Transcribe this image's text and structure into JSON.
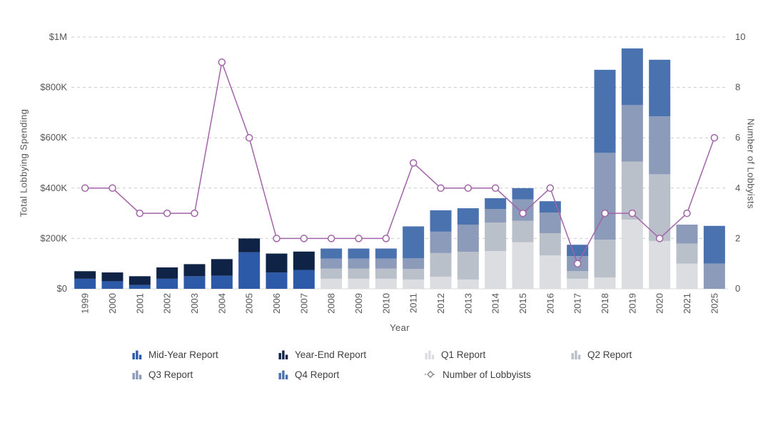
{
  "chart_data": {
    "type": "stacked-bar+line",
    "title": "",
    "xlabel": "Year",
    "ylabel_left": "Total Lobbying Spending",
    "ylabel_right": "Number of Lobbyists",
    "values_unit": "USD thousands",
    "grid": {
      "color": "#cccccc",
      "dashed": true,
      "baseline_color": "#d9d9d9"
    },
    "axis_text_color": "#555555",
    "legend_position": "bottom",
    "categories": [
      "1999",
      "2000",
      "2001",
      "2002",
      "2003",
      "2004",
      "2005",
      "2006",
      "2007",
      "2008",
      "2009",
      "2010",
      "2011",
      "2012",
      "2013",
      "2014",
      "2015",
      "2016",
      "2017",
      "2018",
      "2019",
      "2020",
      "2021",
      "2025"
    ],
    "y_axis_left": {
      "ticks": [
        "$0",
        "$200K",
        "$400K",
        "$600K",
        "$800K",
        "$1M"
      ],
      "tick_values": [
        0,
        200,
        400,
        600,
        800,
        1000
      ],
      "max": 1000
    },
    "y_axis_right": {
      "ticks": [
        "0",
        "2",
        "4",
        "6",
        "8",
        "10"
      ],
      "tick_values": [
        0,
        2,
        4,
        6,
        8,
        10
      ],
      "max": 10
    },
    "bar_series": [
      {
        "name": "Mid-Year Report",
        "color": "#2d5aa8",
        "values": [
          40,
          30,
          15,
          40,
          50,
          52,
          145,
          65,
          75,
          0,
          0,
          0,
          0,
          0,
          0,
          0,
          0,
          0,
          0,
          0,
          0,
          0,
          0,
          0
        ]
      },
      {
        "name": "Year-End Report",
        "color": "#0f2347",
        "values": [
          30,
          35,
          35,
          45,
          48,
          66,
          55,
          75,
          73,
          0,
          0,
          0,
          0,
          0,
          0,
          0,
          0,
          0,
          0,
          0,
          0,
          0,
          0,
          0
        ]
      },
      {
        "name": "Q1 Report",
        "color": "#dcdde1",
        "values": [
          0,
          0,
          0,
          0,
          0,
          0,
          0,
          0,
          0,
          40,
          40,
          40,
          37,
          48,
          37,
          150,
          185,
          133,
          40,
          45,
          275,
          190,
          100,
          0
        ]
      },
      {
        "name": "Q2 Report",
        "color": "#b9c0ca",
        "values": [
          0,
          0,
          0,
          0,
          0,
          0,
          0,
          0,
          0,
          40,
          40,
          40,
          42,
          94,
          110,
          113,
          85,
          88,
          30,
          150,
          230,
          265,
          80,
          0
        ]
      },
      {
        "name": "Q3 Report",
        "color": "#8c9bb9",
        "values": [
          0,
          0,
          0,
          0,
          0,
          0,
          0,
          0,
          0,
          40,
          40,
          40,
          42,
          85,
          108,
          54,
          85,
          82,
          60,
          345,
          225,
          230,
          75,
          100
        ]
      },
      {
        "name": "Q4 Report",
        "color": "#4a72ae",
        "values": [
          0,
          0,
          0,
          0,
          0,
          0,
          0,
          0,
          0,
          40,
          40,
          40,
          127,
          85,
          65,
          43,
          45,
          45,
          45,
          330,
          225,
          225,
          0,
          150
        ]
      }
    ],
    "line_series": {
      "name": "Number of Lobbyists",
      "color": "#a164a8",
      "marker_fill": "#ffffff",
      "values": [
        4,
        4,
        3,
        3,
        3,
        9,
        6,
        2,
        2,
        2,
        2,
        2,
        5,
        4,
        4,
        4,
        3,
        4,
        1,
        3,
        3,
        2,
        3,
        6
      ]
    },
    "legend_marker_color": "#808080"
  }
}
